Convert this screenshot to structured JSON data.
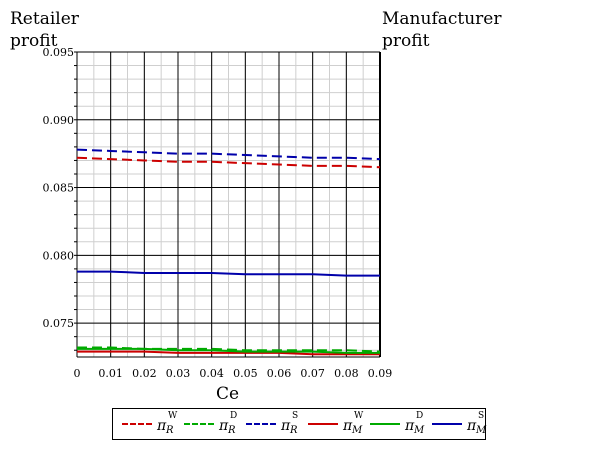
{
  "chart_data": {
    "type": "line",
    "left_axis_title": "Retailer\nprofit",
    "right_axis_title": "Manufacturer\nprofit",
    "xlabel": "Ce",
    "xlim": [
      0,
      0.09
    ],
    "ylim": [
      0.0725,
      0.095
    ],
    "x_ticks": [
      "0",
      "0.01",
      "0.02",
      "0.03",
      "0.04",
      "0.05",
      "0.06",
      "0.07",
      "0.08",
      "0.09"
    ],
    "y_ticks": [
      "0.075",
      "0.080",
      "0.085",
      "0.090",
      "0.095"
    ],
    "y_tick_values": [
      0.075,
      0.08,
      0.085,
      0.09,
      0.095
    ],
    "grid": true,
    "legend_position": "bottom",
    "x": [
      0,
      0.01,
      0.02,
      0.03,
      0.04,
      0.05,
      0.06,
      0.07,
      0.08,
      0.09
    ],
    "series": [
      {
        "name": "π_R^W",
        "base": "π",
        "sub": "R",
        "sup": "W",
        "color": "#cc0000",
        "style": "dashed",
        "values": [
          0.0872,
          0.0871,
          0.087,
          0.0869,
          0.0869,
          0.0868,
          0.0867,
          0.0866,
          0.0866,
          0.0865
        ]
      },
      {
        "name": "π_R^D",
        "base": "π",
        "sub": "R",
        "sup": "D",
        "color": "#00aa00",
        "style": "dashed",
        "values": [
          0.0732,
          0.0732,
          0.0731,
          0.0731,
          0.0731,
          0.073,
          0.073,
          0.073,
          0.073,
          0.0729
        ]
      },
      {
        "name": "π_R^S",
        "base": "π",
        "sub": "R",
        "sup": "S",
        "color": "#0000aa",
        "style": "dashed",
        "values": [
          0.0878,
          0.0877,
          0.0876,
          0.0875,
          0.0875,
          0.0874,
          0.0873,
          0.0872,
          0.0872,
          0.0871
        ]
      },
      {
        "name": "π_M^W",
        "base": "π",
        "sub": "M",
        "sup": "W",
        "color": "#cc0000",
        "style": "solid",
        "values": [
          0.0729,
          0.0729,
          0.0729,
          0.0728,
          0.0728,
          0.0728,
          0.0728,
          0.0727,
          0.0727,
          0.0727
        ]
      },
      {
        "name": "π_M^D",
        "base": "π",
        "sub": "M",
        "sup": "D",
        "color": "#00aa00",
        "style": "solid",
        "values": [
          0.0731,
          0.0731,
          0.0731,
          0.073,
          0.073,
          0.0729,
          0.0729,
          0.0729,
          0.0728,
          0.0728
        ]
      },
      {
        "name": "π_M^S",
        "base": "π",
        "sub": "M",
        "sup": "S",
        "color": "#0000aa",
        "style": "solid",
        "values": [
          0.0788,
          0.0788,
          0.0787,
          0.0787,
          0.0787,
          0.0786,
          0.0786,
          0.0786,
          0.0785,
          0.0785
        ]
      }
    ]
  }
}
